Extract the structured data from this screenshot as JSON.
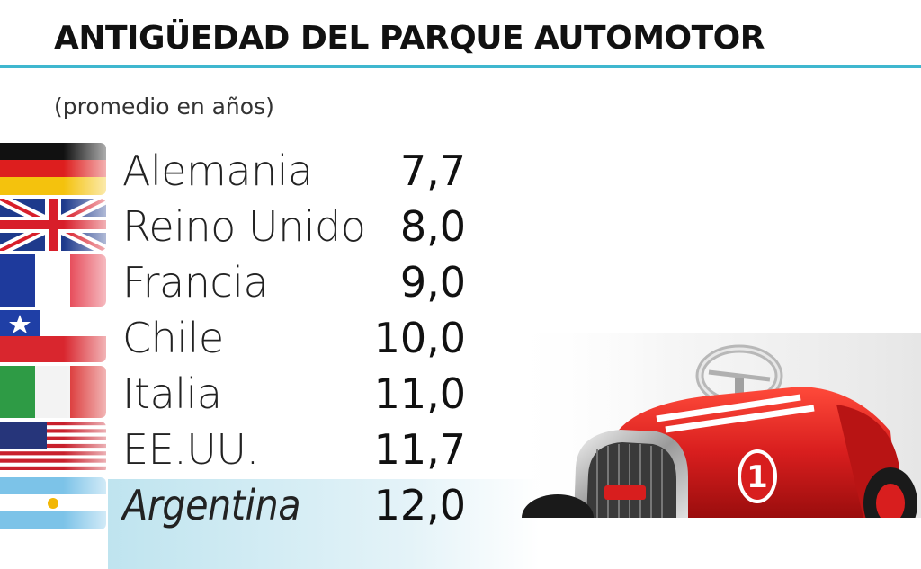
{
  "chart_data": {
    "type": "table",
    "title": "ANTIGÜEDAD DEL PARQUE AUTOMOTOR",
    "subtitle": "(promedio en años)",
    "categories": [
      "Alemania",
      "Reino Unido",
      "Francia",
      "Chile",
      "Italia",
      "EE.UU.",
      "Argentina"
    ],
    "value_labels": [
      "7,7",
      "8,0",
      "9,0",
      "10,0",
      "11,0",
      "11,7",
      "12,0"
    ],
    "values": [
      7.7,
      8.0,
      9.0,
      10.0,
      11.0,
      11.7,
      12.0
    ],
    "highlight": "Argentina"
  },
  "flags": [
    "germany-flag-icon",
    "uk-flag-icon",
    "france-flag-icon",
    "chile-flag-icon",
    "italy-flag-icon",
    "usa-flag-icon",
    "argentina-flag-icon"
  ],
  "colors": {
    "accent_rule": "#3fb7cf",
    "highlight_band": "#bfe4ef",
    "car_red": "#d81e1e"
  },
  "illustration": "red-toy-pedal-car-icon"
}
